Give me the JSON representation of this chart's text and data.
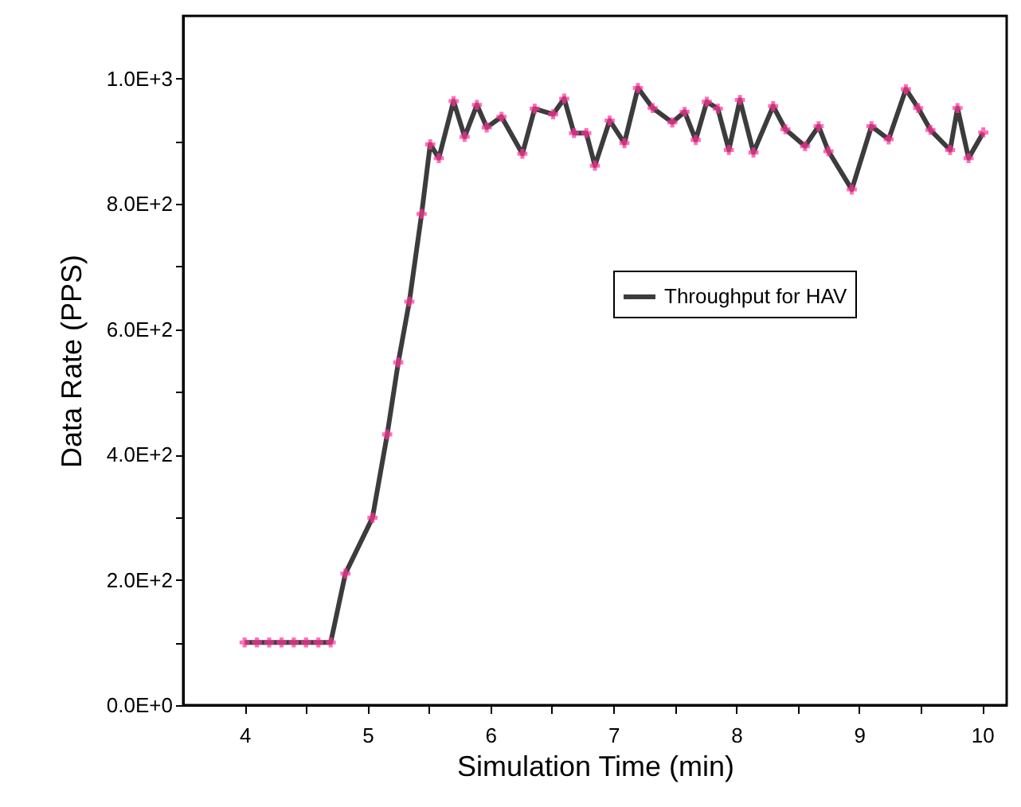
{
  "chart_data": {
    "type": "line",
    "xlabel": "Simulation Time (min)",
    "ylabel": "Data Rate (PPS)",
    "xlim": [
      3.5,
      10.2
    ],
    "xticks": [
      4,
      {
        "value": 4.5,
        "label": null
      },
      5,
      {
        "value": 5.5,
        "label": null
      },
      6,
      {
        "value": 6.5,
        "label": null
      },
      7,
      {
        "value": 7.5,
        "label": null
      },
      8,
      {
        "value": 8.5,
        "label": null
      },
      9,
      {
        "value": 9.5,
        "label": null
      },
      10
    ],
    "ylim": [
      0,
      1100
    ],
    "yticks": [
      {
        "value": 0,
        "label": "0.0E+0"
      },
      {
        "value": 100,
        "label": null
      },
      {
        "value": 200,
        "label": "2.0E+2"
      },
      {
        "value": 300,
        "label": null
      },
      {
        "value": 400,
        "label": "4.0E+2"
      },
      {
        "value": 500,
        "label": null
      },
      {
        "value": 600,
        "label": "6.0E+2"
      },
      {
        "value": 700,
        "label": null
      },
      {
        "value": 800,
        "label": "8.0E+2"
      },
      {
        "value": 900,
        "label": null
      },
      {
        "value": 1000,
        "label": "1.0E+3"
      }
    ],
    "grid": false,
    "legend": "top right",
    "marker": "cross",
    "line_style": "solid",
    "series": [
      {
        "name": "Throughput for HAV",
        "color": "#3c3c3c",
        "x": [
          4.0,
          4.1,
          4.2,
          4.3,
          4.4,
          4.5,
          4.6,
          4.7,
          4.82,
          5.04,
          5.16,
          5.25,
          5.34,
          5.44,
          5.51,
          5.58,
          5.7,
          5.79,
          5.89,
          5.97,
          6.09,
          6.26,
          6.36,
          6.51,
          6.6,
          6.68,
          6.78,
          6.85,
          6.97,
          7.09,
          7.2,
          7.32,
          7.48,
          7.58,
          7.67,
          7.76,
          7.85,
          7.94,
          8.03,
          8.14,
          8.3,
          8.4,
          8.56,
          8.67,
          8.75,
          8.94,
          9.1,
          9.24,
          9.38,
          9.48,
          9.58,
          9.74,
          9.8,
          9.89,
          10.01
        ],
        "values": [
          100,
          100,
          100,
          100,
          100,
          100,
          100,
          100,
          210,
          299,
          432,
          547,
          644,
          784,
          895,
          873,
          964,
          907,
          958,
          922,
          939,
          880,
          952,
          943,
          968,
          913,
          913,
          861,
          933,
          897,
          985,
          953,
          930,
          947,
          902,
          963,
          952,
          886,
          966,
          882,
          956,
          919,
          892,
          924,
          884,
          823,
          924,
          903,
          983,
          953,
          918,
          886,
          953,
          873,
          914
        ]
      }
    ]
  }
}
